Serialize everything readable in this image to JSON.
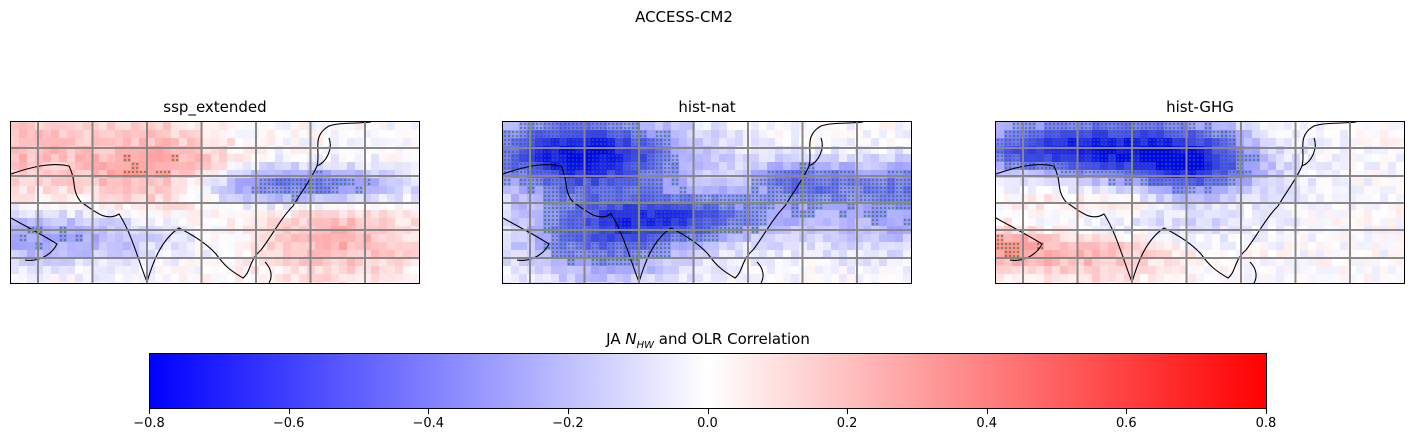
{
  "figure": {
    "title": "ACCESS-CM2"
  },
  "panels": [
    {
      "title": "ssp_extended",
      "seed": 11
    },
    {
      "title": "hist-nat",
      "seed": 27
    },
    {
      "title": "hist-GHG",
      "seed": 53
    }
  ],
  "colorbar": {
    "label_prefix": "JA ",
    "label_symbol": "N",
    "label_subscript": "HW",
    "label_suffix": " and OLR Correlation",
    "colormap": "bwr",
    "min": -0.8,
    "max": 0.8,
    "ticks": [
      "−0.8",
      "−0.6",
      "−0.4",
      "−0.2",
      "0.0",
      "0.2",
      "0.4",
      "0.6",
      "0.8"
    ]
  },
  "colors": {
    "negative": "#0000ff",
    "neutral": "#ffffff",
    "positive": "#ff0000",
    "significance_dots": "#1f7a1f",
    "gridlines": "#888888",
    "coastline": "#000000"
  }
}
